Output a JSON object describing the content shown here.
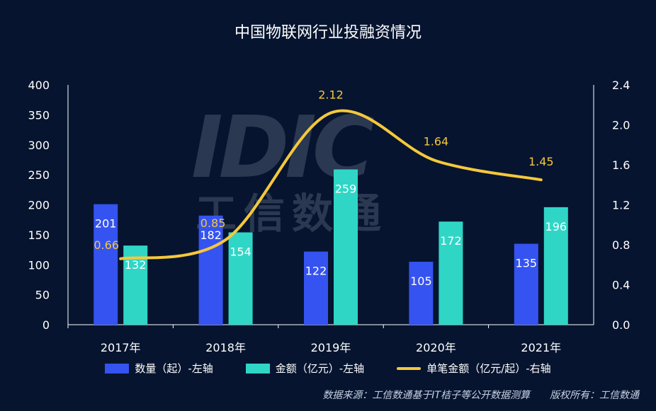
{
  "chart_data": {
    "type": "bar",
    "title": "中国物联网行业投融资情况",
    "categories": [
      "2017年",
      "2018年",
      "2019年",
      "2020年",
      "2021年"
    ],
    "series": [
      {
        "name": "数量（起）-左轴",
        "type": "bar",
        "axis": "left",
        "color": "#3553f0",
        "values": [
          201,
          182,
          122,
          105,
          135
        ]
      },
      {
        "name": "金额（亿元）-左轴",
        "type": "bar",
        "axis": "left",
        "color": "#2fd6c6",
        "values": [
          132,
          154,
          259,
          172,
          196
        ]
      },
      {
        "name": "单笔金额（亿元/起）-右轴",
        "type": "line",
        "axis": "right",
        "color": "#f5c83b",
        "smooth": true,
        "values": [
          0.66,
          0.85,
          2.12,
          1.64,
          1.45
        ]
      }
    ],
    "left_axis": {
      "range": [
        0,
        400
      ],
      "ticks": [
        "0",
        "50",
        "100",
        "150",
        "200",
        "250",
        "300",
        "350",
        "400"
      ]
    },
    "right_axis": {
      "range": [
        0,
        2.4
      ],
      "ticks": [
        "0.0",
        "0.4",
        "0.8",
        "1.2",
        "1.6",
        "2.0",
        "2.4"
      ]
    },
    "line_labels": [
      "0.66",
      "0.85",
      "2.12",
      "1.64",
      "1.45"
    ],
    "grid": false,
    "legend_position": "bottom"
  },
  "source_note": "数据来源：工信数通基于IT桔子等公开数据测算　　版权所有：工信数通",
  "watermark": {
    "logo": "IDIC",
    "text": "工信数通"
  },
  "colors": {
    "background": "#06142f",
    "axis": "#ffffff",
    "line_label": "#f5c83b"
  }
}
